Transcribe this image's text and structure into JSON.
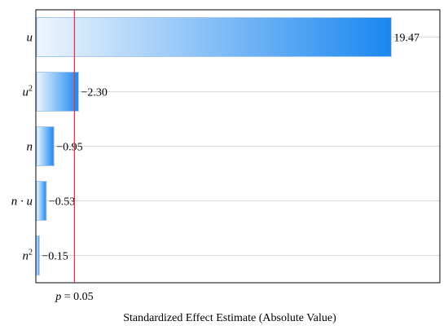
{
  "chart_data": {
    "type": "bar",
    "orientation": "horizontal",
    "title": "",
    "xlabel": "Standardized Effect Estimate (Absolute Value)",
    "ylabel": "",
    "grid": true,
    "categories": [
      "u",
      "u²",
      "n",
      "n · u",
      "n²"
    ],
    "values": [
      19.47,
      2.3,
      0.95,
      0.53,
      0.15
    ],
    "value_labels": [
      "19.47",
      "−2.30",
      "−0.95",
      "−0.53",
      "−0.15"
    ],
    "reference_line": {
      "value": 2.3,
      "label": "p = 0.05",
      "color": "#e8334a"
    },
    "bar_gradient": {
      "from": "#eef5fd",
      "to": "#1a87f0"
    },
    "legend": "none"
  }
}
